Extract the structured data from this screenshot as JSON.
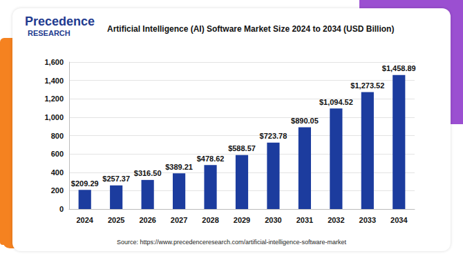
{
  "chart_data": {
    "type": "bar",
    "title": "Artificial Intelligence (AI) Software Market Size 2024 to 2034 (USD Billion)",
    "logo": [
      "Precedence",
      "RESEARCH"
    ],
    "source": "Source: https://www.precedenceresearch.com/artificial-intelligence-software-market",
    "categories": [
      "2024",
      "2025",
      "2026",
      "2027",
      "2028",
      "2029",
      "2030",
      "2031",
      "2032",
      "2033",
      "2034"
    ],
    "values": [
      209.29,
      257.37,
      316.5,
      389.21,
      478.62,
      588.57,
      723.78,
      890.05,
      1094.52,
      1273.52,
      1458.89
    ],
    "value_labels": [
      "$209.29",
      "$257.37",
      "$316.50",
      "$389.21",
      "$478.62",
      "$588.57",
      "$723.78",
      "$890.05",
      "$1,094.52",
      "$1,273.52",
      "$1,458.89"
    ],
    "color": "#1c3c9e",
    "ylim": [
      0,
      1600
    ],
    "yticks": [
      0,
      200,
      400,
      600,
      800,
      1000,
      1200,
      1400,
      1600
    ],
    "grid": true,
    "data_labels": true
  }
}
